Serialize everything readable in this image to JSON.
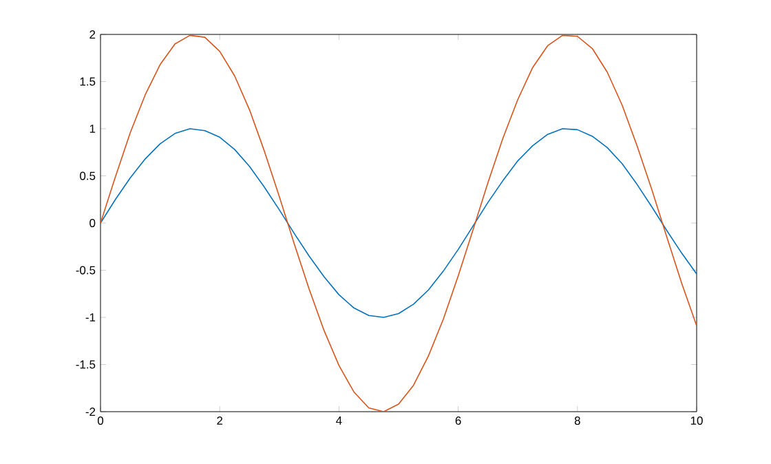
{
  "chart_data": {
    "type": "line",
    "x": [
      0,
      0.25,
      0.5,
      0.75,
      1,
      1.25,
      1.5,
      1.75,
      2,
      2.25,
      2.5,
      2.75,
      3,
      3.25,
      3.5,
      3.75,
      4,
      4.25,
      4.5,
      4.75,
      5,
      5.25,
      5.5,
      5.75,
      6,
      6.25,
      6.5,
      6.75,
      7,
      7.25,
      7.5,
      7.75,
      8,
      8.25,
      8.5,
      8.75,
      9,
      9.25,
      9.5,
      9.75,
      10
    ],
    "series": [
      {
        "color": "#0072bd",
        "values": [
          0,
          0.25,
          0.48,
          0.68,
          0.84,
          0.95,
          1,
          0.98,
          0.91,
          0.78,
          0.6,
          0.38,
          0.14,
          -0.11,
          -0.35,
          -0.57,
          -0.76,
          -0.9,
          -0.98,
          -1,
          -0.96,
          -0.86,
          -0.71,
          -0.51,
          -0.28,
          -0.03,
          0.22,
          0.45,
          0.66,
          0.82,
          0.94,
          1,
          0.99,
          0.92,
          0.8,
          0.63,
          0.41,
          0.17,
          -0.08,
          -0.32,
          -0.54
        ]
      },
      {
        "color": "#d95319",
        "values": [
          0,
          0.49,
          0.96,
          1.36,
          1.68,
          1.9,
          1.99,
          1.97,
          1.82,
          1.56,
          1.2,
          0.76,
          0.28,
          -0.22,
          -0.7,
          -1.14,
          -1.51,
          -1.79,
          -1.96,
          -2,
          -1.92,
          -1.72,
          -1.41,
          -1.02,
          -0.56,
          -0.07,
          0.43,
          0.9,
          1.31,
          1.65,
          1.88,
          1.99,
          1.98,
          1.85,
          1.6,
          1.25,
          0.82,
          0.35,
          -0.15,
          -0.64,
          -1.09
        ]
      }
    ],
    "xlim": [
      0,
      10
    ],
    "ylim": [
      -2,
      2
    ],
    "xticks": [
      0,
      2,
      4,
      6,
      8,
      10
    ],
    "yticks": [
      -2,
      -1.5,
      -1,
      -0.5,
      0,
      0.5,
      1,
      1.5,
      2
    ]
  }
}
